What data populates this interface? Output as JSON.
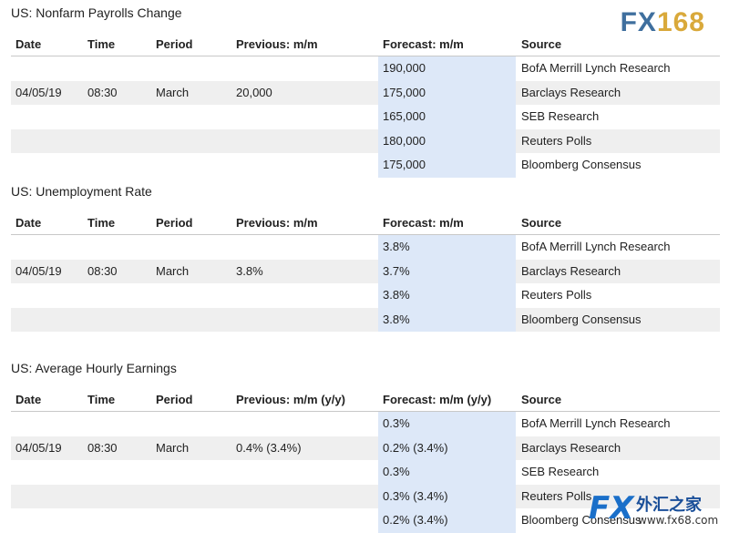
{
  "logo": "FX168",
  "watermark": {
    "brand": "FX",
    "name": "外汇之家",
    "url": "www.fx68.com"
  },
  "tables": [
    {
      "title": "US: Nonfarm Payrolls Change",
      "headers": [
        "Date",
        "Time",
        "Period",
        "Previous: m/m",
        "Forecast: m/m",
        "Source"
      ],
      "info": {
        "date": "04/05/19",
        "time": "08:30",
        "period": "March",
        "previous": "20,000"
      },
      "forecasts": [
        {
          "value": "190,000",
          "source": "BofA Merrill Lynch Research"
        },
        {
          "value": "175,000",
          "source": "Barclays Research"
        },
        {
          "value": "165,000",
          "source": "SEB Research"
        },
        {
          "value": "180,000",
          "source": "Reuters Polls"
        },
        {
          "value": "175,000",
          "source": "Bloomberg Consensus"
        }
      ]
    },
    {
      "title": "US: Unemployment Rate",
      "headers": [
        "Date",
        "Time",
        "Period",
        "Previous: m/m",
        "Forecast: m/m",
        "Source"
      ],
      "info": {
        "date": "04/05/19",
        "time": "08:30",
        "period": "March",
        "previous": "3.8%"
      },
      "forecasts": [
        {
          "value": "3.8%",
          "source": "BofA Merrill Lynch Research"
        },
        {
          "value": "3.7%",
          "source": "Barclays Research"
        },
        {
          "value": "3.8%",
          "source": "Reuters Polls"
        },
        {
          "value": "3.8%",
          "source": "Bloomberg Consensus"
        }
      ]
    },
    {
      "title": "US: Average Hourly Earnings",
      "headers": [
        "Date",
        "Time",
        "Period",
        "Previous: m/m (y/y)",
        "Forecast: m/m (y/y)",
        "Source"
      ],
      "info": {
        "date": "04/05/19",
        "time": "08:30",
        "period": "March",
        "previous": "0.4% (3.4%)"
      },
      "forecasts": [
        {
          "value": "0.3%",
          "source": "BofA Merrill Lynch Research"
        },
        {
          "value": "0.2% (3.4%)",
          "source": "Barclays Research"
        },
        {
          "value": "0.3%",
          "source": "SEB Research"
        },
        {
          "value": "0.3% (3.4%)",
          "source": "Reuters Polls"
        },
        {
          "value": "0.2% (3.4%)",
          "source": "Bloomberg Consensus"
        }
      ]
    }
  ]
}
